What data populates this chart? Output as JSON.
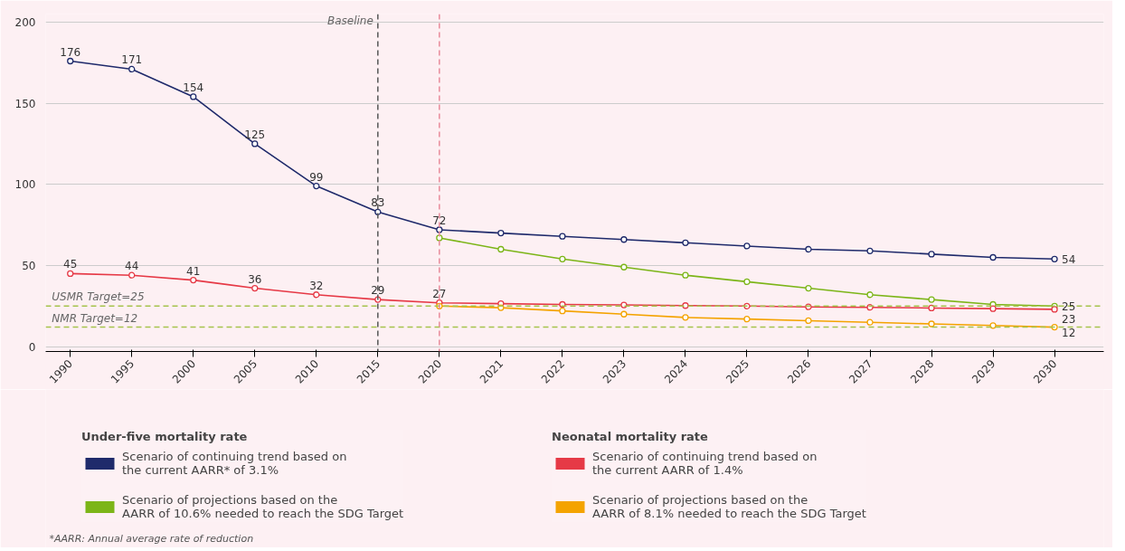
{
  "chart_data": {
    "type": "line",
    "categories": [
      "1990",
      "1995",
      "2000",
      "2005",
      "2010",
      "2015",
      "2020",
      "2021",
      "2022",
      "2023",
      "2024",
      "2025",
      "2026",
      "2027",
      "2028",
      "2029",
      "2030"
    ],
    "series": [
      {
        "name": "Scenario of continuing trend based on the current AARR* of 3.1%",
        "color": "#1f2a6b",
        "values": [
          176,
          171,
          154,
          125,
          99,
          83,
          72,
          70,
          68,
          66,
          64,
          62,
          60,
          59,
          57,
          55,
          54
        ],
        "value_labels": [
          "176",
          "171",
          "154",
          "125",
          "99",
          "83",
          "72",
          null,
          null,
          null,
          null,
          null,
          null,
          null,
          null,
          null,
          "54"
        ]
      },
      {
        "name": "Scenario of projections based on the AARR of 10.6% needed to reach the SDG Target",
        "color": "#7cb518",
        "values": [
          null,
          null,
          null,
          null,
          null,
          null,
          67,
          60,
          54,
          49,
          44,
          40,
          36,
          32,
          29,
          26,
          25
        ],
        "value_labels": [
          null,
          null,
          null,
          null,
          null,
          null,
          null,
          null,
          null,
          null,
          null,
          null,
          null,
          null,
          null,
          null,
          "25"
        ]
      },
      {
        "name": "Scenario of continuing trend based on the current AARR of 1.4%",
        "color": "#e63946",
        "values": [
          45,
          44,
          41,
          36,
          32,
          29,
          27,
          26.5,
          26,
          25.7,
          25.3,
          25,
          24.5,
          24.2,
          23.8,
          23.4,
          23
        ],
        "value_labels": [
          "45",
          "44",
          "41",
          "36",
          "32",
          "29",
          "27",
          null,
          null,
          null,
          null,
          null,
          null,
          null,
          null,
          null,
          "23"
        ]
      },
      {
        "name": "Scenario of projections based on the AARR of 8.1% needed to reach the SDG Target",
        "color": "#f4a300",
        "values": [
          null,
          null,
          null,
          null,
          null,
          null,
          25,
          24,
          22,
          20,
          18,
          17,
          16,
          15,
          14,
          13,
          12
        ],
        "value_labels": [
          null,
          null,
          null,
          null,
          null,
          null,
          null,
          null,
          null,
          null,
          null,
          null,
          null,
          null,
          null,
          null,
          "12"
        ]
      }
    ],
    "ylim": [
      -3,
      205
    ],
    "yticks": [
      0,
      50,
      100,
      150,
      200
    ],
    "grid": "y",
    "marker": "circle",
    "line_style": "solid",
    "legend": "bottom",
    "ref_lines": [
      {
        "axis": "y",
        "value": 25,
        "label": "USMR Target=25",
        "color": "#a6c34c",
        "line_style": "dashed"
      },
      {
        "axis": "y",
        "value": 12,
        "label": "NMR Target=12",
        "color": "#a6c34c",
        "line_style": "dashed"
      },
      {
        "axis": "x",
        "value": "2015",
        "label": "Baseline",
        "color": "#555555",
        "line_style": "dashed"
      },
      {
        "axis": "x",
        "value": "2020",
        "label": null,
        "color": "#e88a9a",
        "line_style": "dashed"
      }
    ],
    "annotations": [
      "Under-five mortality rate",
      "Neonatal mortality rate",
      "*AARR: Annual average rate of reduction"
    ]
  }
}
